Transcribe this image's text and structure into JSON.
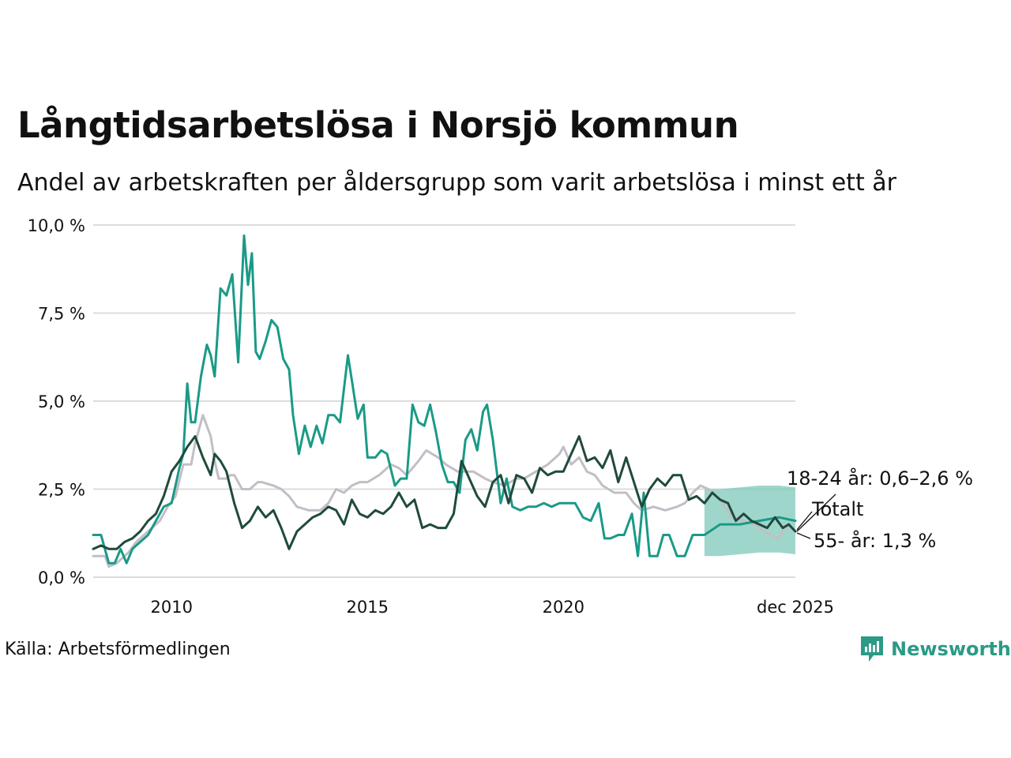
{
  "header": {
    "title": "Långtidsarbetslösa i Norsjö kommun",
    "subtitle": "Andel av arbetskraften per åldersgrupp som varit arbetslösa i minst ett år"
  },
  "footer": {
    "source": "Källa: Arbetsförmedlingen",
    "brand": "Newsworthy"
  },
  "colors": {
    "youth": "#1a9a87",
    "total": "#1f4a3c",
    "senior": "#c2bec6",
    "band": "#7fc8bb",
    "grid": "#dcdcdc"
  },
  "chart_data": {
    "type": "line",
    "title": "Långtidsarbetslösa i Norsjö kommun",
    "subtitle": "Andel av arbetskraften per åldersgrupp som varit arbetslösa i minst ett år",
    "xlabel": "",
    "ylabel": "",
    "xlim": [
      2008.0,
      2025.92
    ],
    "ylim": [
      0,
      10
    ],
    "y_ticks": [
      0,
      2.5,
      5,
      7.5,
      10
    ],
    "y_tick_labels": [
      "0,0 %",
      "2,5 %",
      "5,0 %",
      "7,5 %",
      "10,0 %"
    ],
    "x_ticks": [
      2010,
      2015,
      2020,
      2025.92
    ],
    "x_tick_labels": [
      "2010",
      "2015",
      "2020",
      "dec 2025"
    ],
    "series": [
      {
        "name": "55- år",
        "key": "senior",
        "label": "55- år: 1,3 %",
        "x": [
          2008.0,
          2008.3,
          2008.4,
          2008.6,
          2008.9,
          2009.1,
          2009.4,
          2009.7,
          2009.9,
          2010.1,
          2010.3,
          2010.5,
          2010.6,
          2010.8,
          2011.0,
          2011.1,
          2011.2,
          2011.4,
          2011.5,
          2011.6,
          2011.8,
          2012.0,
          2012.2,
          2012.3,
          2012.6,
          2012.8,
          2013.0,
          2013.2,
          2013.5,
          2013.8,
          2014.0,
          2014.2,
          2014.4,
          2014.6,
          2014.8,
          2015.0,
          2015.3,
          2015.6,
          2015.8,
          2016.0,
          2016.3,
          2016.5,
          2016.8,
          2017.0,
          2017.3,
          2017.5,
          2017.7,
          2018.0,
          2018.2,
          2018.5,
          2018.8,
          2019.0,
          2019.3,
          2019.6,
          2019.9,
          2020.0,
          2020.2,
          2020.4,
          2020.6,
          2020.8,
          2021.0,
          2021.3,
          2021.6,
          2021.8,
          2022.0,
          2022.3,
          2022.6,
          2022.9,
          2023.1,
          2023.3,
          2023.5,
          2023.7,
          2024.0,
          2024.3,
          2024.6,
          2024.9,
          2025.1,
          2025.3,
          2025.5,
          2025.7,
          2025.92
        ],
        "y": [
          0.6,
          0.6,
          0.3,
          0.4,
          0.7,
          1.0,
          1.3,
          1.6,
          2.0,
          2.3,
          3.2,
          3.2,
          3.8,
          4.6,
          4.0,
          3.3,
          2.8,
          2.8,
          2.9,
          2.9,
          2.5,
          2.5,
          2.7,
          2.7,
          2.6,
          2.5,
          2.3,
          2.0,
          1.9,
          1.9,
          2.1,
          2.5,
          2.4,
          2.6,
          2.7,
          2.7,
          2.9,
          3.2,
          3.1,
          2.9,
          3.3,
          3.6,
          3.4,
          3.2,
          3.0,
          3.0,
          3.0,
          2.8,
          2.7,
          2.6,
          2.8,
          2.8,
          3.0,
          3.2,
          3.5,
          3.7,
          3.2,
          3.4,
          3.0,
          2.9,
          2.6,
          2.4,
          2.4,
          2.1,
          1.9,
          2.0,
          1.9,
          2.0,
          2.1,
          2.4,
          2.6,
          2.5,
          2.2,
          1.7,
          1.6,
          1.5,
          1.3,
          1.2,
          1.1,
          1.5,
          1.3
        ]
      },
      {
        "name": "18-24 år",
        "key": "youth",
        "label": "18-24 år: 0,6–2,6 %",
        "x": [
          2008.0,
          2008.2,
          2008.4,
          2008.55,
          2008.7,
          2008.85,
          2009.0,
          2009.2,
          2009.4,
          2009.6,
          2009.8,
          2010.0,
          2010.1,
          2010.2,
          2010.3,
          2010.4,
          2010.5,
          2010.6,
          2010.75,
          2010.9,
          2011.0,
          2011.1,
          2011.25,
          2011.4,
          2011.55,
          2011.7,
          2011.85,
          2011.95,
          2012.05,
          2012.15,
          2012.25,
          2012.4,
          2012.55,
          2012.7,
          2012.85,
          2013.0,
          2013.1,
          2013.25,
          2013.4,
          2013.55,
          2013.7,
          2013.85,
          2014.0,
          2014.15,
          2014.3,
          2014.5,
          2014.6,
          2014.75,
          2014.9,
          2015.0,
          2015.2,
          2015.35,
          2015.5,
          2015.7,
          2015.85,
          2016.0,
          2016.15,
          2016.3,
          2016.45,
          2016.6,
          2016.75,
          2016.9,
          2017.05,
          2017.2,
          2017.35,
          2017.5,
          2017.65,
          2017.8,
          2017.95,
          2018.05,
          2018.2,
          2018.4,
          2018.55,
          2018.7,
          2018.9,
          2019.1,
          2019.3,
          2019.5,
          2019.7,
          2019.9,
          2020.1,
          2020.3,
          2020.5,
          2020.7,
          2020.9,
          2021.05,
          2021.2,
          2021.4,
          2021.55,
          2021.75,
          2021.9,
          2022.05,
          2022.2,
          2022.4,
          2022.55,
          2022.7,
          2022.9,
          2023.1,
          2023.3,
          2023.5,
          2023.6,
          2024.0,
          2024.5,
          2025.0,
          2025.5,
          2025.92
        ],
        "y": [
          1.2,
          1.2,
          0.4,
          0.4,
          0.8,
          0.4,
          0.8,
          1.0,
          1.2,
          1.6,
          2.0,
          2.1,
          2.6,
          3.1,
          3.5,
          5.5,
          4.4,
          4.4,
          5.7,
          6.6,
          6.3,
          5.7,
          8.2,
          8.0,
          8.6,
          6.1,
          9.7,
          8.3,
          9.2,
          6.4,
          6.2,
          6.7,
          7.3,
          7.1,
          6.2,
          5.9,
          4.6,
          3.5,
          4.3,
          3.7,
          4.3,
          3.8,
          4.6,
          4.6,
          4.4,
          6.3,
          5.6,
          4.5,
          4.9,
          3.4,
          3.4,
          3.6,
          3.5,
          2.6,
          2.8,
          2.8,
          4.9,
          4.4,
          4.3,
          4.9,
          4.1,
          3.2,
          2.7,
          2.7,
          2.4,
          3.9,
          4.2,
          3.6,
          4.7,
          4.9,
          3.9,
          2.1,
          2.8,
          2.0,
          1.9,
          2.0,
          2.0,
          2.1,
          2.0,
          2.1,
          2.1,
          2.1,
          1.7,
          1.6,
          2.1,
          1.1,
          1.1,
          1.2,
          1.2,
          1.8,
          0.6,
          2.4,
          0.6,
          0.6,
          1.2,
          1.2,
          0.6,
          0.6,
          1.2,
          1.2,
          1.2,
          1.5,
          1.5,
          1.6,
          1.7,
          1.6
        ]
      },
      {
        "name": "Totalt",
        "key": "total",
        "label": "Totalt",
        "x": [
          2008.0,
          2008.2,
          2008.4,
          2008.6,
          2008.8,
          2009.0,
          2009.2,
          2009.4,
          2009.6,
          2009.8,
          2010.0,
          2010.2,
          2010.4,
          2010.6,
          2010.8,
          2011.0,
          2011.1,
          2011.25,
          2011.4,
          2011.6,
          2011.8,
          2012.0,
          2012.2,
          2012.4,
          2012.6,
          2012.8,
          2013.0,
          2013.2,
          2013.4,
          2013.6,
          2013.8,
          2014.0,
          2014.2,
          2014.4,
          2014.6,
          2014.8,
          2015.0,
          2015.2,
          2015.4,
          2015.6,
          2015.8,
          2016.0,
          2016.2,
          2016.4,
          2016.6,
          2016.8,
          2017.0,
          2017.2,
          2017.4,
          2017.6,
          2017.8,
          2018.0,
          2018.2,
          2018.4,
          2018.6,
          2018.8,
          2019.0,
          2019.2,
          2019.4,
          2019.6,
          2019.8,
          2020.0,
          2020.2,
          2020.4,
          2020.6,
          2020.8,
          2021.0,
          2021.2,
          2021.4,
          2021.6,
          2021.8,
          2022.0,
          2022.2,
          2022.4,
          2022.6,
          2022.8,
          2023.0,
          2023.2,
          2023.4,
          2023.6,
          2023.8,
          2024.0,
          2024.2,
          2024.4,
          2024.6,
          2024.8,
          2025.0,
          2025.2,
          2025.4,
          2025.6,
          2025.75,
          2025.92
        ],
        "y": [
          0.8,
          0.9,
          0.8,
          0.8,
          1.0,
          1.1,
          1.3,
          1.6,
          1.8,
          2.3,
          3.0,
          3.3,
          3.7,
          4.0,
          3.4,
          2.9,
          3.5,
          3.3,
          3.0,
          2.1,
          1.4,
          1.6,
          2.0,
          1.7,
          1.9,
          1.4,
          0.8,
          1.3,
          1.5,
          1.7,
          1.8,
          2.0,
          1.9,
          1.5,
          2.2,
          1.8,
          1.7,
          1.9,
          1.8,
          2.0,
          2.4,
          2.0,
          2.2,
          1.4,
          1.5,
          1.4,
          1.4,
          1.8,
          3.3,
          2.8,
          2.3,
          2.0,
          2.7,
          2.9,
          2.1,
          2.9,
          2.8,
          2.4,
          3.1,
          2.9,
          3.0,
          3.0,
          3.5,
          4.0,
          3.3,
          3.4,
          3.1,
          3.6,
          2.7,
          3.4,
          2.7,
          2.0,
          2.5,
          2.8,
          2.6,
          2.9,
          2.9,
          2.2,
          2.3,
          2.1,
          2.4,
          2.2,
          2.1,
          1.6,
          1.8,
          1.6,
          1.5,
          1.4,
          1.7,
          1.4,
          1.5,
          1.3
        ]
      }
    ],
    "band": {
      "name": "18-24 år osäkerhetsintervall",
      "key": "band",
      "x": [
        2023.6,
        2024.0,
        2024.5,
        2025.0,
        2025.5,
        2025.92
      ],
      "lower": [
        0.6,
        0.6,
        0.65,
        0.7,
        0.7,
        0.65
      ],
      "upper": [
        2.5,
        2.5,
        2.55,
        2.6,
        2.6,
        2.55
      ]
    }
  }
}
